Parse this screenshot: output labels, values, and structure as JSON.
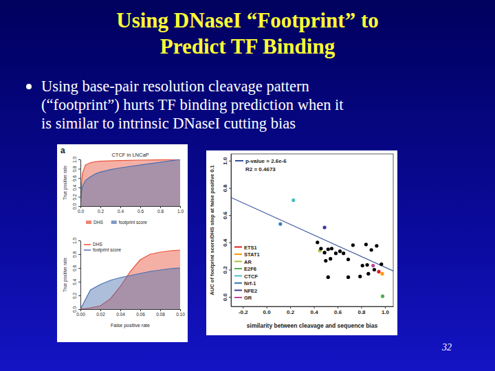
{
  "slide": {
    "title_lines": [
      "Using DNaseI “Footprint” to",
      "Predict TF Binding"
    ],
    "bullet_lines": [
      "Using base-pair resolution cleavage pattern",
      "(“footprint”) hurts TF binding prediction when it",
      "is similar to intrinsic DNaseI cutting bias"
    ],
    "panel_label": "a",
    "page_number": "32"
  },
  "chart_data": [
    {
      "type": "area",
      "title": "CTCF in LNCaP",
      "y_label": "True positive rate",
      "x": [
        0,
        0.01,
        0.02,
        0.05,
        0.1,
        0.15,
        0.2,
        0.3,
        0.4,
        0.6,
        0.8,
        1.0
      ],
      "series": [
        {
          "name": "DHS",
          "color": "#e8503a",
          "values": [
            0,
            0.45,
            0.7,
            0.88,
            0.93,
            0.95,
            0.96,
            0.97,
            0.975,
            0.985,
            0.99,
            1.0
          ]
        },
        {
          "name": "footprint score",
          "color": "#4a6fb0",
          "values": [
            0,
            0.3,
            0.42,
            0.55,
            0.63,
            0.69,
            0.73,
            0.78,
            0.82,
            0.88,
            0.94,
            1.0
          ]
        }
      ],
      "xlim": [
        0,
        1
      ],
      "ylim": [
        0,
        1
      ],
      "xticks": [
        {
          "value": 0,
          "label": "0.0"
        },
        {
          "value": 0.2,
          "label": "0.2"
        },
        {
          "value": 0.4,
          "label": "0.4"
        },
        {
          "value": 0.6,
          "label": "0.6"
        },
        {
          "value": 0.8,
          "label": "0.8"
        },
        {
          "value": 1,
          "label": "1.0"
        }
      ],
      "yticks": [
        {
          "value": 0,
          "label": "0.0"
        },
        {
          "value": 0.2,
          "label": "0.2"
        },
        {
          "value": 0.4,
          "label": "0.4"
        },
        {
          "value": 0.6,
          "label": "0.6"
        },
        {
          "value": 0.8,
          "label": "0.8"
        },
        {
          "value": 1,
          "label": "1.0"
        }
      ],
      "legend": "bottom"
    },
    {
      "type": "area",
      "y_label": "True positive rate",
      "x_label": "False positive rate",
      "x": [
        0,
        0.01,
        0.02,
        0.03,
        0.04,
        0.05,
        0.06,
        0.07,
        0.08,
        0.09,
        0.1
      ],
      "series": [
        {
          "name": "DHS",
          "color": "#e8503a",
          "values": [
            0,
            0.02,
            0.05,
            0.15,
            0.33,
            0.55,
            0.72,
            0.8,
            0.83,
            0.85,
            0.86
          ]
        },
        {
          "name": "footprint score",
          "color": "#4a6fb0",
          "values": [
            0,
            0.28,
            0.36,
            0.42,
            0.46,
            0.49,
            0.52,
            0.55,
            0.57,
            0.59,
            0.6
          ]
        }
      ],
      "xlim": [
        0,
        0.1
      ],
      "ylim": [
        0,
        1
      ],
      "xticks": [
        {
          "value": 0,
          "label": "0.00"
        },
        {
          "value": 0.02,
          "label": "0.02"
        },
        {
          "value": 0.04,
          "label": "0.04"
        },
        {
          "value": 0.06,
          "label": "0.06"
        },
        {
          "value": 0.08,
          "label": "0.08"
        },
        {
          "value": 0.1,
          "label": "0.10"
        }
      ],
      "yticks": [
        {
          "value": 0,
          "label": "0.0"
        },
        {
          "value": 0.2,
          "label": "0.2"
        },
        {
          "value": 0.4,
          "label": "0.4"
        },
        {
          "value": 0.6,
          "label": "0.6"
        },
        {
          "value": 0.8,
          "label": "0.8"
        },
        {
          "value": 1,
          "label": "1.0"
        }
      ],
      "legend": "top-left"
    },
    {
      "type": "scatter",
      "x_label": "similarity between cleavage and sequence bias",
      "y_label": "AUC of footprint score/DHS stop at false positive 0.1",
      "annotations": [
        "p-value = 2.6e-6",
        "R2 = 0.4673"
      ],
      "fit_line": {
        "x": [
          -0.3,
          1.07
        ],
        "y": [
          0.73,
          0.19
        ],
        "color": "#34509c"
      },
      "series": [
        {
          "name": "ETS1",
          "color": "#e41a1c",
          "marker": "circle",
          "x": [
            0.948
          ],
          "values": [
            0.185
          ]
        },
        {
          "name": "STAT1",
          "color": "#ff9900",
          "marker": "circle",
          "x": [
            0.977
          ],
          "values": [
            0.17
          ]
        },
        {
          "name": "AR",
          "color": "#a8c43c",
          "marker": "circle",
          "x": [
            0.45
          ],
          "values": [
            0.34
          ]
        },
        {
          "name": "E2F6",
          "color": "#4daf4a",
          "marker": "circle",
          "x": [
            0.98
          ],
          "values": [
            0.005
          ]
        },
        {
          "name": "CTCF",
          "color": "#45bfc0",
          "marker": "circle",
          "x": [
            0.227
          ],
          "values": [
            0.71
          ]
        },
        {
          "name": "Nrf-1",
          "color": "#377eb8",
          "marker": "circle",
          "x": [
            0.117
          ],
          "values": [
            0.535
          ]
        },
        {
          "name": "NFE2",
          "color": "#3a3a9a",
          "marker": "circle",
          "x": [
            0.49
          ],
          "values": [
            0.51
          ]
        },
        {
          "name": "GR",
          "color": "#c0409c",
          "marker": "circle",
          "x": [
            0.9
          ],
          "values": [
            0.23
          ]
        },
        {
          "color": "#000000",
          "marker": "circle",
          "x": [
            0.43,
            0.46,
            0.49,
            0.52,
            0.55,
            0.585,
            0.62,
            0.5,
            0.54,
            0.69,
            0.73,
            0.81,
            0.84,
            0.885,
            0.93,
            0.91,
            0.79,
            0.69,
            0.52,
            0.86,
            0.97,
            0.85,
            0.65
          ],
          "values": [
            0.4,
            0.355,
            0.325,
            0.35,
            0.355,
            0.32,
            0.335,
            0.265,
            0.28,
            0.275,
            0.38,
            0.23,
            0.385,
            0.345,
            0.375,
            0.2,
            0.15,
            0.145,
            0.145,
            0.17,
            0.24,
            0.235,
            0.32
          ]
        }
      ],
      "xlim": [
        -0.3,
        1.07
      ],
      "ylim": [
        -0.07,
        1.05
      ],
      "xticks": [
        {
          "value": -0.2,
          "label": "-0.2"
        },
        {
          "value": 0,
          "label": "0.0"
        },
        {
          "value": 0.2,
          "label": "0.2"
        },
        {
          "value": 0.4,
          "label": "0.4"
        },
        {
          "value": 0.6,
          "label": "0.6"
        },
        {
          "value": 0.8,
          "label": "0.8"
        },
        {
          "value": 1,
          "label": "1.0"
        }
      ],
      "yticks": [
        {
          "value": 0,
          "label": "0.0"
        },
        {
          "value": 0.2,
          "label": "0.2"
        },
        {
          "value": 0.4,
          "label": "0.4"
        },
        {
          "value": 0.6,
          "label": "0.6"
        },
        {
          "value": 0.8,
          "label": "0.8"
        },
        {
          "value": 1,
          "label": "1.0"
        }
      ],
      "legend": "bottom-left"
    }
  ]
}
